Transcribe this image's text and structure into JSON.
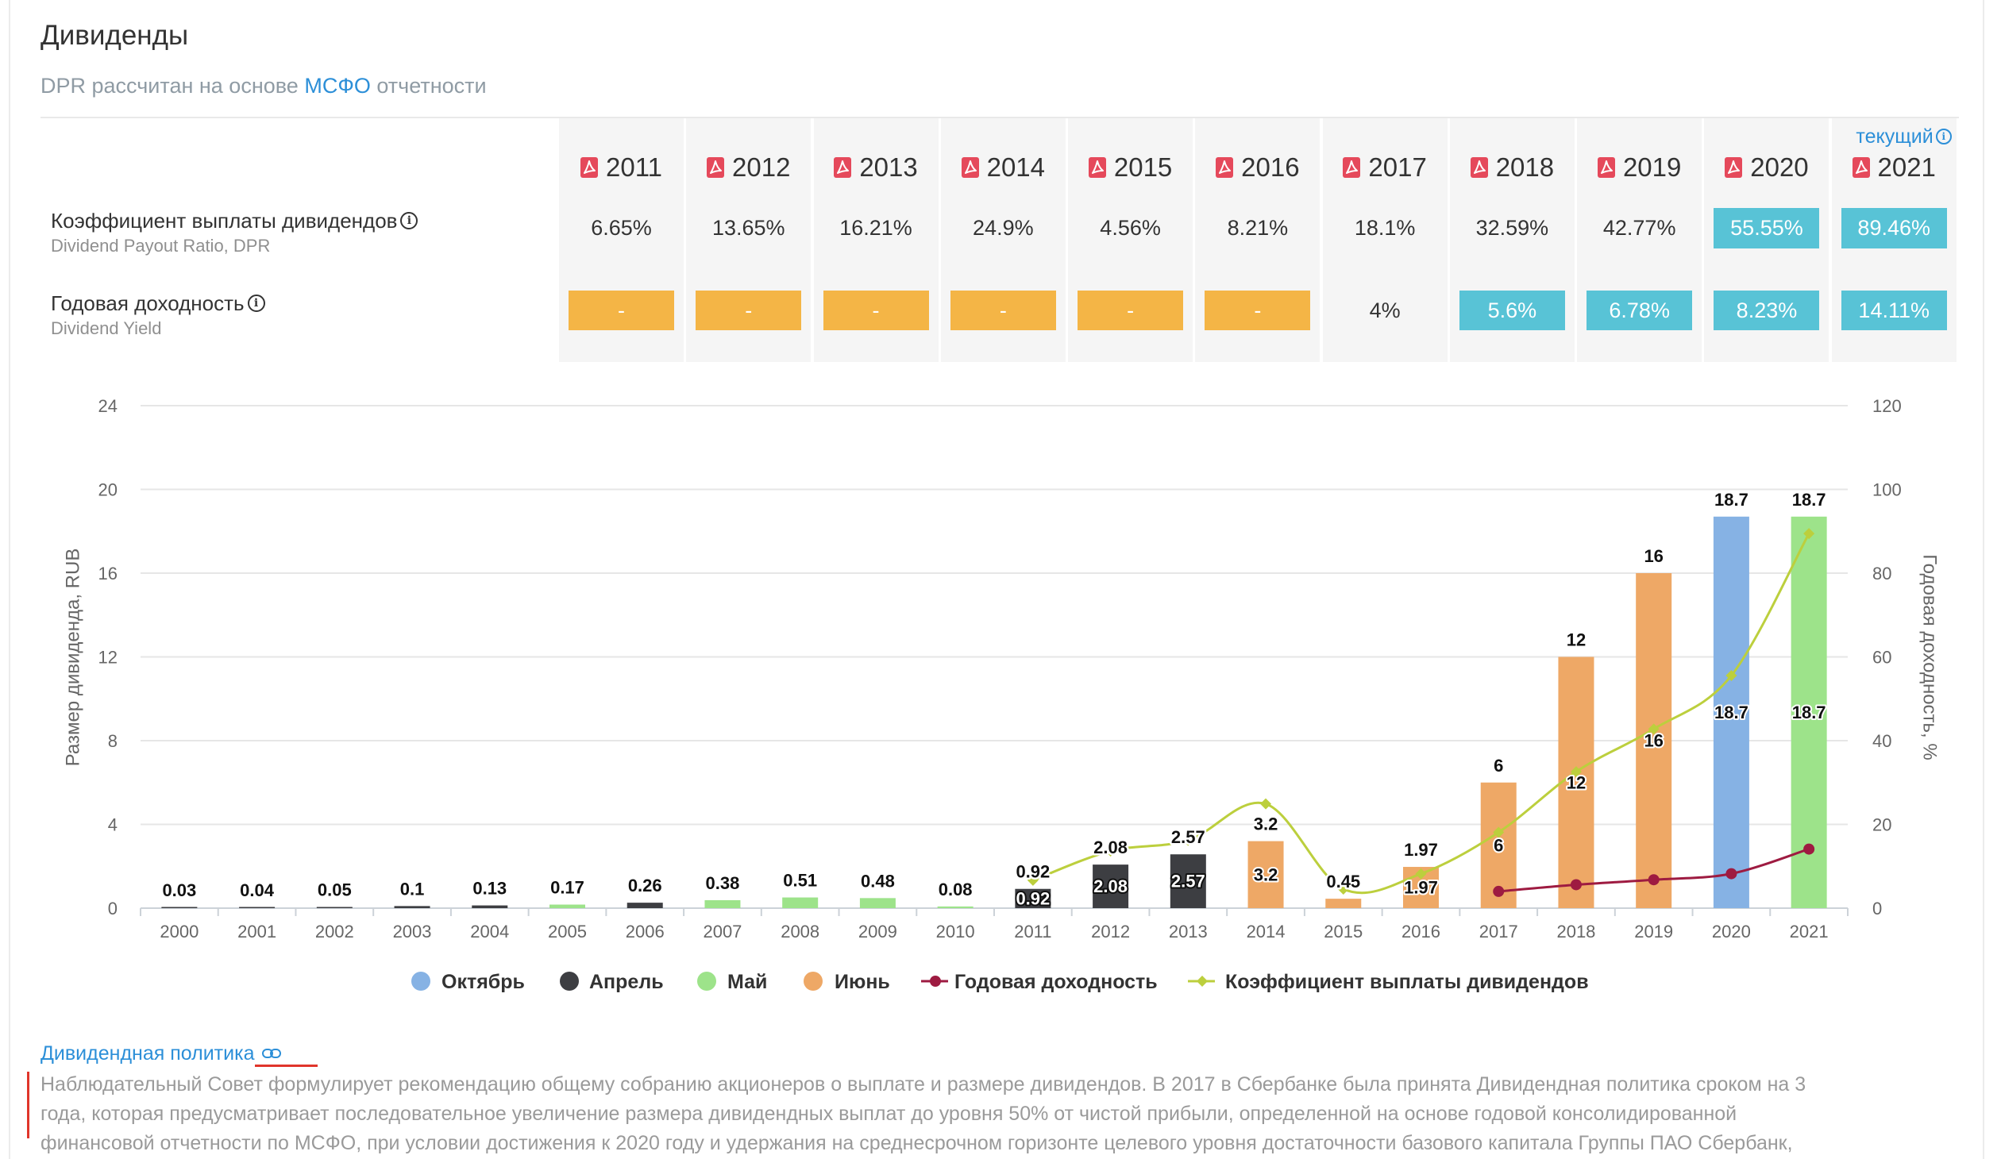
{
  "header": {
    "title": "Дивиденды",
    "subtitle_prefix": "DPR рассчитан на основе",
    "subtitle_link": "МСФО",
    "subtitle_suffix": "отчетности"
  },
  "table": {
    "current_label": "текущий",
    "years": [
      "2011",
      "2012",
      "2013",
      "2014",
      "2015",
      "2016",
      "2017",
      "2018",
      "2019",
      "2020",
      "2021"
    ],
    "rows": [
      {
        "key": "dpr",
        "label": "Коэффициент выплаты дивидендов",
        "sublabel": "Dividend Payout Ratio, DPR",
        "cells": [
          {
            "value": "6.65%",
            "style": "plain"
          },
          {
            "value": "13.65%",
            "style": "plain"
          },
          {
            "value": "16.21%",
            "style": "plain"
          },
          {
            "value": "24.9%",
            "style": "plain"
          },
          {
            "value": "4.56%",
            "style": "plain"
          },
          {
            "value": "8.21%",
            "style": "plain"
          },
          {
            "value": "18.1%",
            "style": "plain"
          },
          {
            "value": "32.59%",
            "style": "plain"
          },
          {
            "value": "42.77%",
            "style": "plain"
          },
          {
            "value": "55.55%",
            "style": "cyan"
          },
          {
            "value": "89.46%",
            "style": "cyan"
          }
        ]
      },
      {
        "key": "yield",
        "label": "Годовая доходность",
        "sublabel": "Dividend Yield",
        "cells": [
          {
            "value": "-",
            "style": "orange"
          },
          {
            "value": "-",
            "style": "orange"
          },
          {
            "value": "-",
            "style": "orange"
          },
          {
            "value": "-",
            "style": "orange"
          },
          {
            "value": "-",
            "style": "orange"
          },
          {
            "value": "-",
            "style": "orange"
          },
          {
            "value": "4%",
            "style": "plain"
          },
          {
            "value": "5.6%",
            "style": "cyan"
          },
          {
            "value": "6.78%",
            "style": "cyan"
          },
          {
            "value": "8.23%",
            "style": "cyan"
          },
          {
            "value": "14.11%",
            "style": "cyan"
          }
        ]
      }
    ]
  },
  "colors": {
    "accent": "#2c8fd8",
    "cyan": "#58c3d6",
    "orange": "#f4b546",
    "pdf_red": "#e5495b",
    "annotation_red": "#e0352b"
  },
  "chart_data": {
    "type": "bar",
    "title": "",
    "categories": [
      "2000",
      "2001",
      "2002",
      "2003",
      "2004",
      "2005",
      "2006",
      "2007",
      "2008",
      "2009",
      "2010",
      "2011",
      "2012",
      "2013",
      "2014",
      "2015",
      "2016",
      "2017",
      "2018",
      "2019",
      "2020",
      "2021"
    ],
    "series": [
      {
        "name": "Размер дивиденда",
        "axis": "left",
        "values": [
          0.03,
          0.04,
          0.05,
          0.1,
          0.13,
          0.17,
          0.26,
          0.38,
          0.51,
          0.48,
          0.08,
          0.92,
          2.08,
          2.57,
          3.2,
          0.45,
          1.97,
          6,
          12,
          16,
          18.7,
          18.7
        ]
      }
    ],
    "payment_month": [
      "Апрель",
      "Апрель",
      "Апрель",
      "Апрель",
      "Апрель",
      "Май",
      "Апрель",
      "Май",
      "Май",
      "Май",
      "Май",
      "Апрель",
      "Апрель",
      "Апрель",
      "Июнь",
      "Июнь",
      "Июнь",
      "Июнь",
      "Июнь",
      "Июнь",
      "Октябрь",
      "Май"
    ],
    "months": [
      {
        "name": "Октябрь",
        "color": "#86b2e4"
      },
      {
        "name": "Апрель",
        "color": "#3d3e42"
      },
      {
        "name": "Май",
        "color": "#9de38a"
      },
      {
        "name": "Июнь",
        "color": "#eea866"
      }
    ],
    "line_series": [
      {
        "name": "Годовая доходность",
        "axis": "right",
        "color": "#9e1b41",
        "x": [
          "2017",
          "2018",
          "2019",
          "2020",
          "2021"
        ],
        "values": [
          4,
          5.6,
          6.78,
          8.23,
          14.11
        ]
      },
      {
        "name": "Коэффициент выплаты дивидендов",
        "axis": "right",
        "color": "#bccf3d",
        "x": [
          "2011",
          "2012",
          "2013",
          "2014",
          "2015",
          "2016",
          "2017",
          "2018",
          "2019",
          "2020",
          "2021"
        ],
        "values": [
          6.65,
          13.65,
          16.21,
          24.9,
          4.56,
          8.21,
          18.1,
          32.59,
          42.77,
          55.55,
          89.46
        ]
      }
    ],
    "xlabel": "",
    "ylabel": "Размер дивиденда, RUB",
    "ylim": [
      0,
      24
    ],
    "yticks": [
      0,
      4,
      8,
      12,
      16,
      20,
      24
    ],
    "y2label": "Годовая доходность, %",
    "y2lim": [
      0,
      120
    ],
    "y2ticks": [
      0,
      20,
      40,
      60,
      80,
      100,
      120
    ],
    "grid": true,
    "legend": "bottom-center"
  },
  "policy": {
    "link": "Дивидендная политика",
    "lines": [
      "Наблюдательный Совет формулирует рекомендацию общему собранию акционеров о выплате и размере дивидендов. В 2017 в Сбербанке была принята Дивидендная политика сроком на 3",
      "года, которая предусматривает последовательное увеличение размера дивидендных выплат до уровня 50% от чистой прибыли, определенной на основе годовой консолидированной",
      "финансовой отчетности по МСФО, при условии достижения к 2020 году и удержания на среднесрочном горизонте целевого уровня достаточности базового капитала Группы ПАО Сбербанк,"
    ]
  }
}
